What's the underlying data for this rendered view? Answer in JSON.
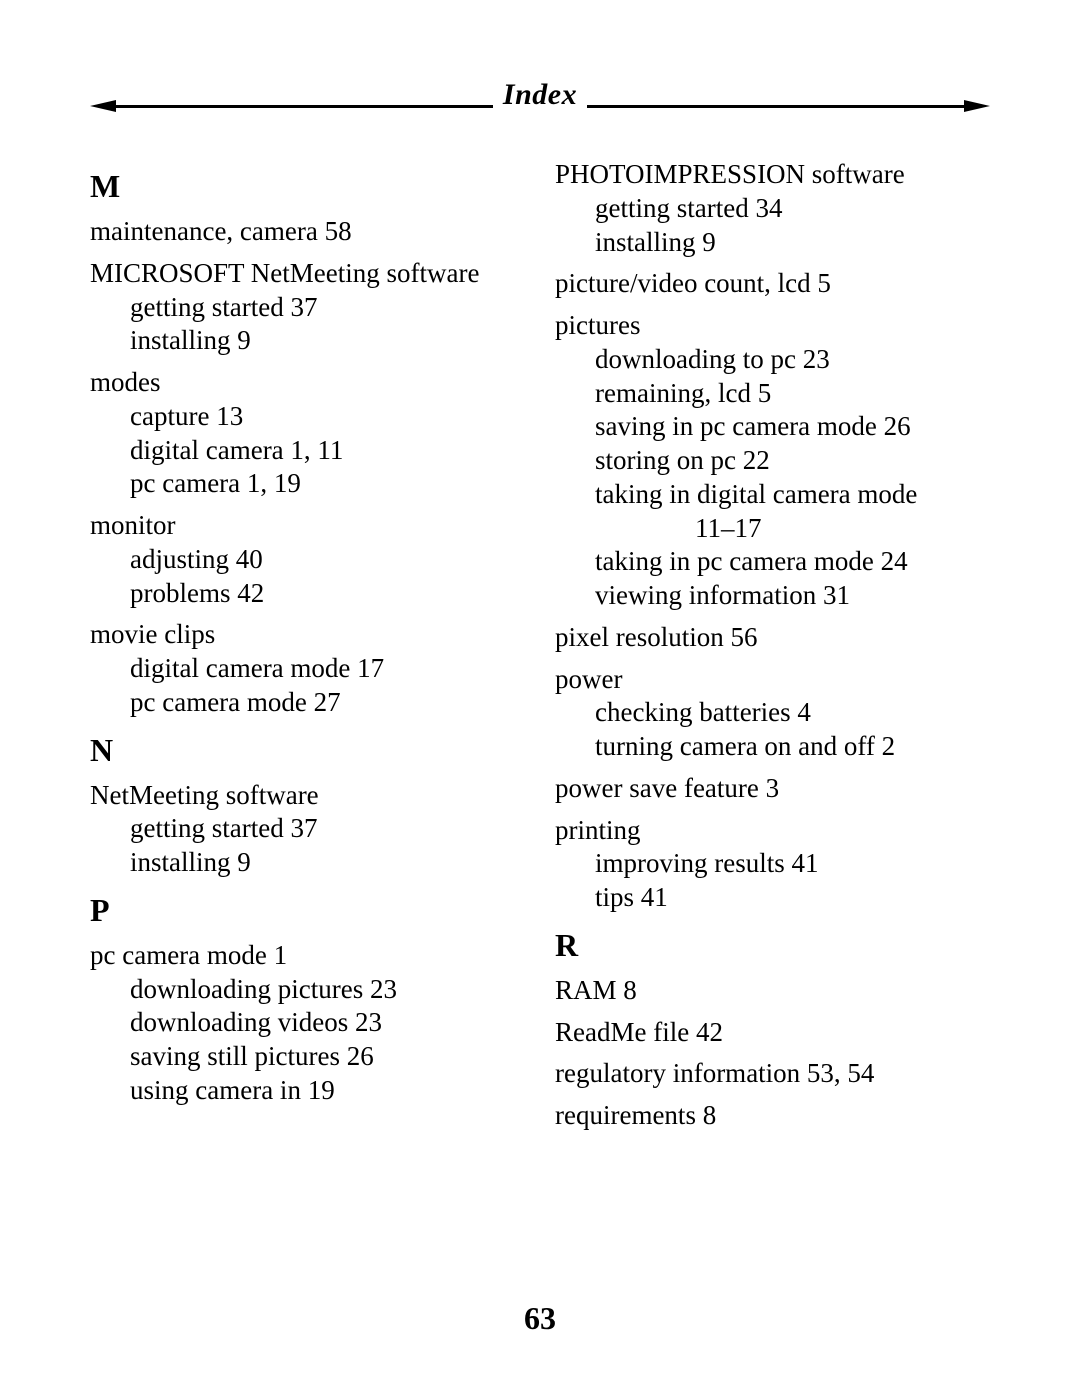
{
  "header": {
    "title": "Index"
  },
  "pageNumber": "63",
  "left": {
    "sections": [
      {
        "letter": "M",
        "groups": [
          {
            "head": "maintenance, camera 58"
          },
          {
            "head": "MICROSOFT NetMeeting software",
            "subs": [
              "getting started 37",
              "installing 9"
            ]
          },
          {
            "head": "modes",
            "subs": [
              "capture 13",
              "digital camera 1, 11",
              "pc camera 1, 19"
            ]
          },
          {
            "head": "monitor",
            "subs": [
              "adjusting 40",
              "problems 42"
            ]
          },
          {
            "head": "movie clips",
            "subs": [
              "digital camera mode 17",
              "pc camera mode 27"
            ]
          }
        ]
      },
      {
        "letter": "N",
        "groups": [
          {
            "head": "NetMeeting software",
            "subs": [
              "getting started 37",
              "installing 9"
            ]
          }
        ]
      },
      {
        "letter": "P",
        "groups": [
          {
            "head": "pc camera mode 1",
            "subs": [
              "downloading pictures 23",
              "downloading videos 23",
              "saving still pictures 26",
              "using camera in 19"
            ]
          }
        ]
      }
    ]
  },
  "right": {
    "preSections": [
      {
        "head": "PHOTOIMPRESSION software",
        "subs": [
          "getting started 34",
          "installing 9"
        ]
      },
      {
        "head": "picture/video count, lcd 5"
      },
      {
        "head": "pictures",
        "subs": [
          "downloading to pc 23",
          "remaining, lcd 5",
          "saving in pc camera mode 26",
          "storing on pc 22",
          "taking in digital camera mode",
          {
            "doubleIndent": true,
            "text": "11–17"
          },
          "taking in pc camera mode 24",
          "viewing information 31"
        ]
      },
      {
        "head": "pixel resolution 56"
      },
      {
        "head": "power",
        "subs": [
          "checking batteries 4",
          "turning camera on and off 2"
        ]
      },
      {
        "head": "power save feature 3"
      },
      {
        "head": "printing",
        "subs": [
          "improving results 41",
          "tips 41"
        ]
      }
    ],
    "sections": [
      {
        "letter": "R",
        "groups": [
          {
            "head": "RAM 8"
          },
          {
            "head": "ReadMe file 42"
          },
          {
            "head": "regulatory information 53, 54"
          },
          {
            "head": "requirements 8"
          }
        ]
      }
    ]
  }
}
